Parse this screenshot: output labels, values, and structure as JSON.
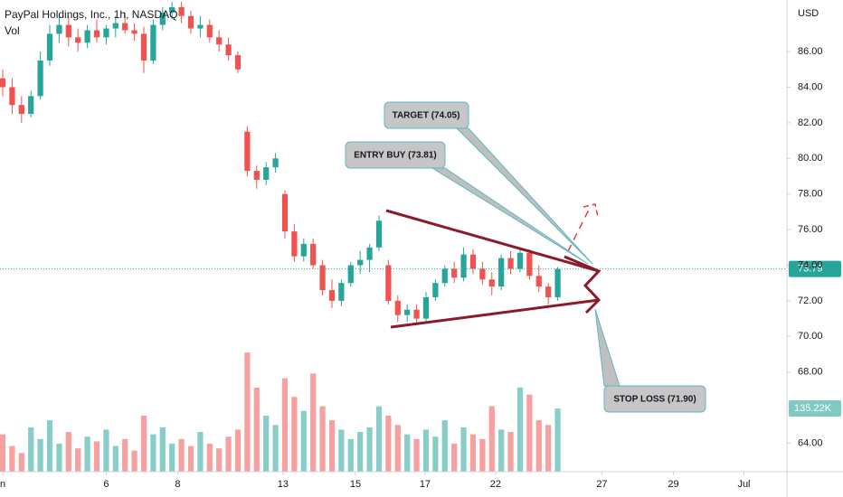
{
  "chart_data": {
    "type": "candlestick",
    "title": "PayPal Holdings, Inc., 1h, NASDAQ",
    "volume_label": "Vol",
    "currency": "USD",
    "up_color": "#26a69a",
    "down_color": "#ef5350",
    "ylim": [
      62.4,
      88.9
    ],
    "yticks": [
      {
        "value": 64,
        "label": "64.00"
      },
      {
        "value": 68,
        "label": "68.00"
      },
      {
        "value": 70,
        "label": "70.00"
      },
      {
        "value": 72,
        "label": "72.00"
      },
      {
        "value": 74,
        "label": "74.00"
      },
      {
        "value": 76,
        "label": "76.00"
      },
      {
        "value": 78,
        "label": "78.00"
      },
      {
        "value": 80,
        "label": "80.00"
      },
      {
        "value": 82,
        "label": "82.00"
      },
      {
        "value": 84,
        "label": "84.00"
      },
      {
        "value": 86,
        "label": "86.00"
      }
    ],
    "xlim": [
      -0.29,
      83.37
    ],
    "xticks": [
      {
        "value": 0,
        "label": "n"
      },
      {
        "value": 11,
        "label": "6"
      },
      {
        "value": 18.6,
        "label": "8"
      },
      {
        "value": 29.8,
        "label": "13"
      },
      {
        "value": 37.5,
        "label": "15"
      },
      {
        "value": 44.9,
        "label": "17"
      },
      {
        "value": 52.4,
        "label": "22"
      },
      {
        "value": 63.7,
        "label": "27"
      },
      {
        "value": 71.3,
        "label": "29"
      },
      {
        "value": 78.8,
        "label": "Jul"
      }
    ],
    "ohlc": [
      [
        84.5,
        85,
        83.5,
        84
      ],
      [
        84,
        84.5,
        82.5,
        83
      ],
      [
        83,
        83.5,
        82,
        82.5
      ],
      [
        82.5,
        83.8,
        82.3,
        83.5
      ],
      [
        83.5,
        86,
        83.3,
        85.5
      ],
      [
        85.5,
        87.5,
        85.2,
        87
      ],
      [
        87,
        88,
        86.5,
        87.5
      ],
      [
        87.5,
        88,
        86.3,
        86.8
      ],
      [
        86.8,
        87.3,
        86,
        86.5
      ],
      [
        86.5,
        87.5,
        86.2,
        87.2
      ],
      [
        87.2,
        87.8,
        86.5,
        86.8
      ],
      [
        86.8,
        87.5,
        86.4,
        87.3
      ],
      [
        87.3,
        88,
        86.8,
        87.6
      ],
      [
        87.6,
        88.2,
        87,
        87.2
      ],
      [
        87.2,
        87.6,
        86.6,
        87
      ],
      [
        87,
        87.4,
        84.8,
        85.5
      ],
      [
        85.5,
        87.8,
        85.3,
        87.5
      ],
      [
        87.5,
        88.5,
        87.2,
        88.2
      ],
      [
        88.2,
        88.8,
        87.8,
        88.5
      ],
      [
        88.5,
        88.8,
        87.6,
        88
      ],
      [
        88,
        88.3,
        87,
        87.3
      ],
      [
        87.3,
        88,
        86.8,
        87.5
      ],
      [
        87.5,
        87.8,
        86.5,
        86.8
      ],
      [
        86.8,
        87.2,
        86,
        86.4
      ],
      [
        86.4,
        86.8,
        85.5,
        85.8
      ],
      [
        85.8,
        86,
        84.8,
        85
      ],
      [
        81.5,
        81.8,
        79,
        79.3
      ],
      [
        79.3,
        79.6,
        78.3,
        78.8
      ],
      [
        78.8,
        79.8,
        78.5,
        79.5
      ],
      [
        79.5,
        80.3,
        79.2,
        80
      ],
      [
        78,
        78.2,
        75.5,
        75.9
      ],
      [
        75.9,
        76.3,
        74.2,
        74.5
      ],
      [
        74.5,
        75.5,
        74.2,
        75.2
      ],
      [
        75.2,
        75.5,
        73.8,
        74
      ],
      [
        74,
        74.3,
        72.3,
        72.6
      ],
      [
        72.6,
        73.2,
        71.6,
        72
      ],
      [
        72,
        73.2,
        71.7,
        73
      ],
      [
        73,
        74.2,
        72.8,
        74
      ],
      [
        74,
        74.8,
        73.5,
        74.3
      ],
      [
        74.3,
        75.2,
        73.6,
        75
      ],
      [
        75,
        76.8,
        74.8,
        76.5
      ],
      [
        74,
        74.3,
        71.8,
        72
      ],
      [
        72,
        72.3,
        70.8,
        71.2
      ],
      [
        71.2,
        71.8,
        70.8,
        71.5
      ],
      [
        71.5,
        71.8,
        70.7,
        71
      ],
      [
        71,
        72.5,
        70.8,
        72.2
      ],
      [
        72.2,
        73.2,
        72,
        73
      ],
      [
        73,
        74,
        72.8,
        73.8
      ],
      [
        73.8,
        74.2,
        73,
        73.3
      ],
      [
        73.3,
        75,
        73.1,
        74.6
      ],
      [
        74.6,
        74.9,
        73.5,
        73.8
      ],
      [
        73.8,
        74.2,
        72.9,
        73.2
      ],
      [
        73.2,
        73.6,
        72.3,
        72.8
      ],
      [
        72.8,
        74.6,
        72.6,
        74.4
      ],
      [
        74.4,
        74.8,
        73.5,
        73.8
      ],
      [
        73.8,
        75,
        73.6,
        74.7
      ],
      [
        74.7,
        74.9,
        73.2,
        73.4
      ],
      [
        73.4,
        74,
        72.5,
        72.8
      ],
      [
        72.8,
        73,
        71.8,
        72.2
      ],
      [
        72.2,
        73.9,
        72,
        73.79
      ]
    ],
    "volume": [
      80,
      55,
      40,
      95,
      70,
      110,
      60,
      85,
      50,
      75,
      65,
      90,
      55,
      70,
      45,
      120,
      80,
      95,
      60,
      70,
      55,
      85,
      60,
      50,
      75,
      90,
      255,
      180,
      120,
      100,
      200,
      160,
      130,
      210,
      140,
      110,
      90,
      70,
      85,
      95,
      140,
      120,
      100,
      80,
      70,
      90,
      75,
      110,
      60,
      95,
      80,
      70,
      140,
      90,
      85,
      180,
      165,
      110,
      100,
      135.22
    ],
    "vlim": [
      0,
      290
    ],
    "last_price": {
      "value": 73.79,
      "label": "73.79"
    },
    "last_volume": {
      "value": 135.22,
      "label": "135.22K"
    },
    "annotations": [
      "TARGET (74.05)",
      "ENTRY BUY (73.81)",
      "STOP LOSS (71.90)"
    ]
  }
}
